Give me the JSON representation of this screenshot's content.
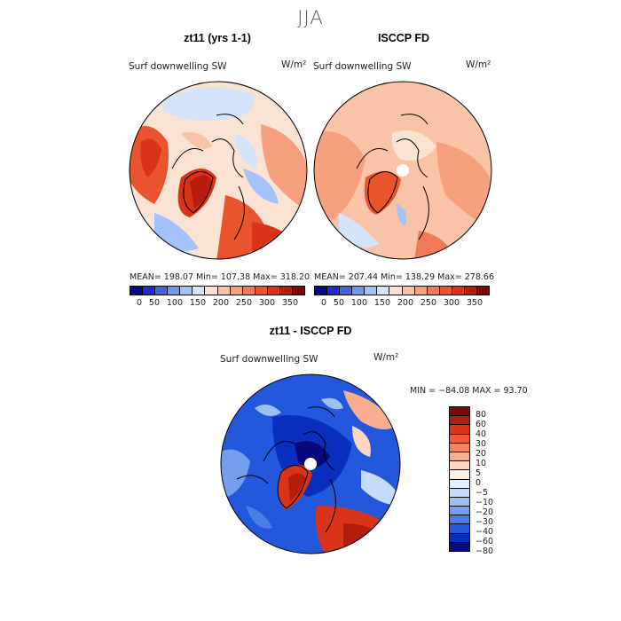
{
  "season": "JJA",
  "panels": [
    {
      "title": "zt11 (yrs 1-1)",
      "variable": "Surf downwelling SW",
      "units": "W/m²",
      "stats": "MEAN= 198.07   Min= 107.38   Max= 318.20",
      "colorbar_ticks": [
        "0",
        "50",
        "100",
        "150",
        "200",
        "250",
        "300",
        "350"
      ]
    },
    {
      "title": "ISCCP FD",
      "variable": "Surf downwelling SW",
      "units": "W/m²",
      "stats": "MEAN= 207.44   Min= 138.29   Max= 278.66",
      "colorbar_ticks": [
        "0",
        "50",
        "100",
        "150",
        "200",
        "250",
        "300",
        "350"
      ]
    }
  ],
  "diff": {
    "title": "zt11 - ISCCP FD",
    "variable": "Surf downwelling SW",
    "units": "W/m²",
    "stats": "MIN = −84.08  MAX =  93.70",
    "colorbar_ticks": [
      "80",
      "60",
      "40",
      "30",
      "20",
      "10",
      "5",
      "0",
      "−5",
      "−10",
      "−20",
      "−30",
      "−40",
      "−60",
      "−80"
    ]
  },
  "colors": {
    "abs_scale": [
      "#08088a",
      "#1a2fcc",
      "#3d66e0",
      "#6f97ee",
      "#a3c2f7",
      "#d6e4fb",
      "#fbe3d3",
      "#f9c3a7",
      "#f6a07e",
      "#f07a55",
      "#e9532e",
      "#d9341a",
      "#b31d0d",
      "#7d0a05"
    ],
    "diff_scale": [
      "#7d0a05",
      "#b31d0d",
      "#d9341a",
      "#ec5a33",
      "#f3845e",
      "#f8ae8e",
      "#fbd7c3",
      "#fdf0e6",
      "#e4efff",
      "#c5d9fa",
      "#9ebff5",
      "#739fee",
      "#4a7de6",
      "#2458dc",
      "#0a2fbf",
      "#06087c"
    ]
  }
}
